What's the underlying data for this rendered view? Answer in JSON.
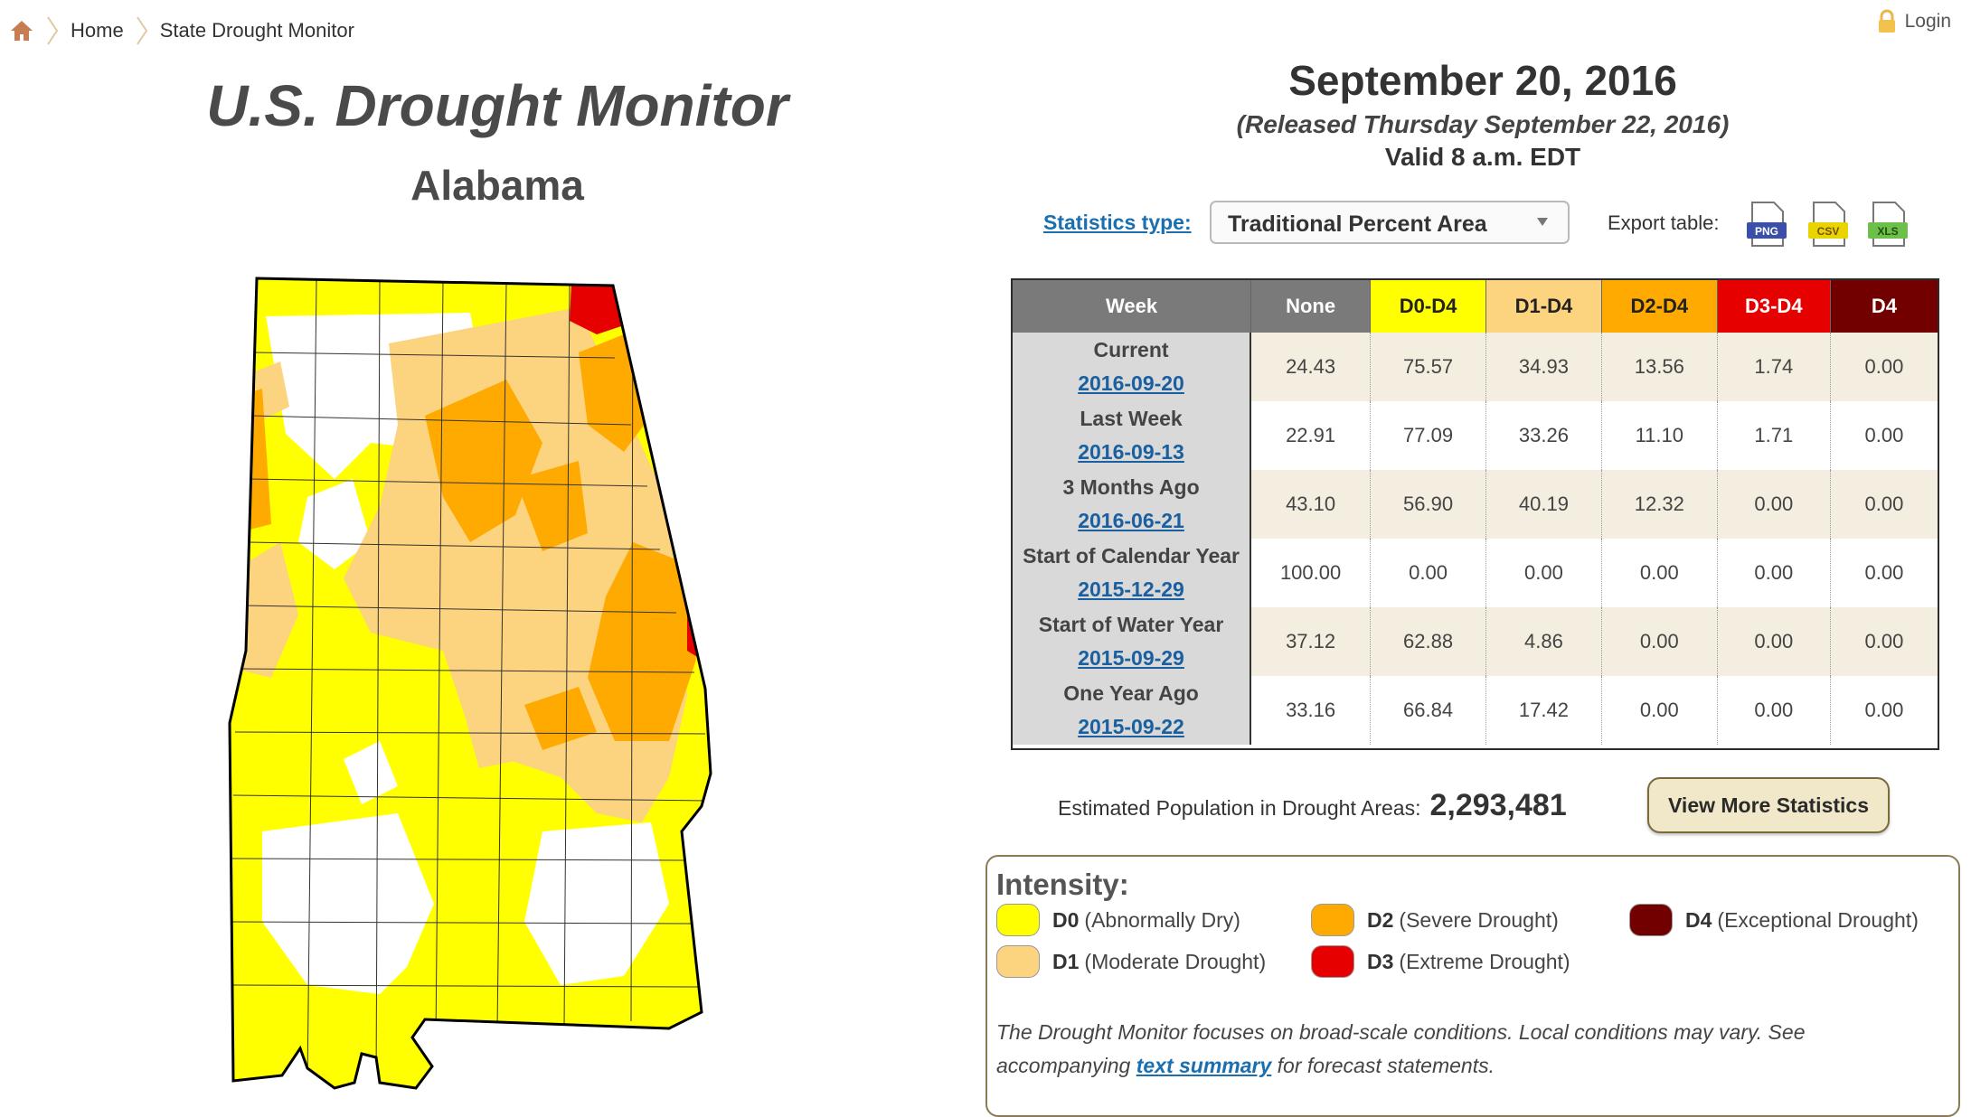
{
  "breadcrumb": {
    "home": "Home",
    "current": "State Drought Monitor"
  },
  "login": "Login",
  "title": "U.S. Drought Monitor",
  "state": "Alabama",
  "date": "September 20, 2016",
  "released": "(Released Thursday September 22, 2016)",
  "valid": "Valid 8 a.m. EDT",
  "stats_type": {
    "label": "Statistics type:",
    "selected": "Traditional Percent Area"
  },
  "export": {
    "label": "Export table:",
    "png": "PNG",
    "csv": "CSV",
    "xls": "XLS"
  },
  "table": {
    "headers": [
      "Week",
      "None",
      "D0-D4",
      "D1-D4",
      "D2-D4",
      "D3-D4",
      "D4"
    ],
    "header_colors": [
      "#7a7a7a",
      "#7a7a7a",
      "#ffff00",
      "#fcd37f",
      "#ffaa00",
      "#e60000",
      "#730000"
    ],
    "rows": [
      {
        "label": "Current",
        "date": "2016-09-20",
        "values": [
          "24.43",
          "75.57",
          "34.93",
          "13.56",
          "1.74",
          "0.00"
        ]
      },
      {
        "label": "Last Week",
        "date": "2016-09-13",
        "values": [
          "22.91",
          "77.09",
          "33.26",
          "11.10",
          "1.71",
          "0.00"
        ]
      },
      {
        "label": "3 Months Ago",
        "date": "2016-06-21",
        "values": [
          "43.10",
          "56.90",
          "40.19",
          "12.32",
          "0.00",
          "0.00"
        ]
      },
      {
        "label": "Start of Calendar Year",
        "date": "2015-12-29",
        "values": [
          "100.00",
          "0.00",
          "0.00",
          "0.00",
          "0.00",
          "0.00"
        ]
      },
      {
        "label": "Start of Water Year",
        "date": "2015-09-29",
        "values": [
          "37.12",
          "62.88",
          "4.86",
          "0.00",
          "0.00",
          "0.00"
        ]
      },
      {
        "label": "One Year Ago",
        "date": "2015-09-22",
        "values": [
          "33.16",
          "66.84",
          "17.42",
          "0.00",
          "0.00",
          "0.00"
        ]
      }
    ]
  },
  "population": {
    "label": "Estimated Population in Drought Areas:",
    "value": "2,293,481"
  },
  "more_stats_button": "View More Statistics",
  "legend": {
    "title": "Intensity:",
    "items": [
      {
        "code": "D0",
        "desc": "(Abnormally Dry)",
        "color": "#ffff00"
      },
      {
        "code": "D1",
        "desc": "(Moderate Drought)",
        "color": "#fcd37f"
      },
      {
        "code": "D2",
        "desc": "(Severe Drought)",
        "color": "#ffaa00"
      },
      {
        "code": "D3",
        "desc": "(Extreme Drought)",
        "color": "#e60000"
      },
      {
        "code": "D4",
        "desc": "(Exceptional Drought)",
        "color": "#730000"
      }
    ]
  },
  "disclaimer": {
    "before": "The Drought Monitor focuses on broad-scale conditions. Local conditions may vary. See accompanying ",
    "link": "text summary",
    "after": " for forecast statements."
  }
}
